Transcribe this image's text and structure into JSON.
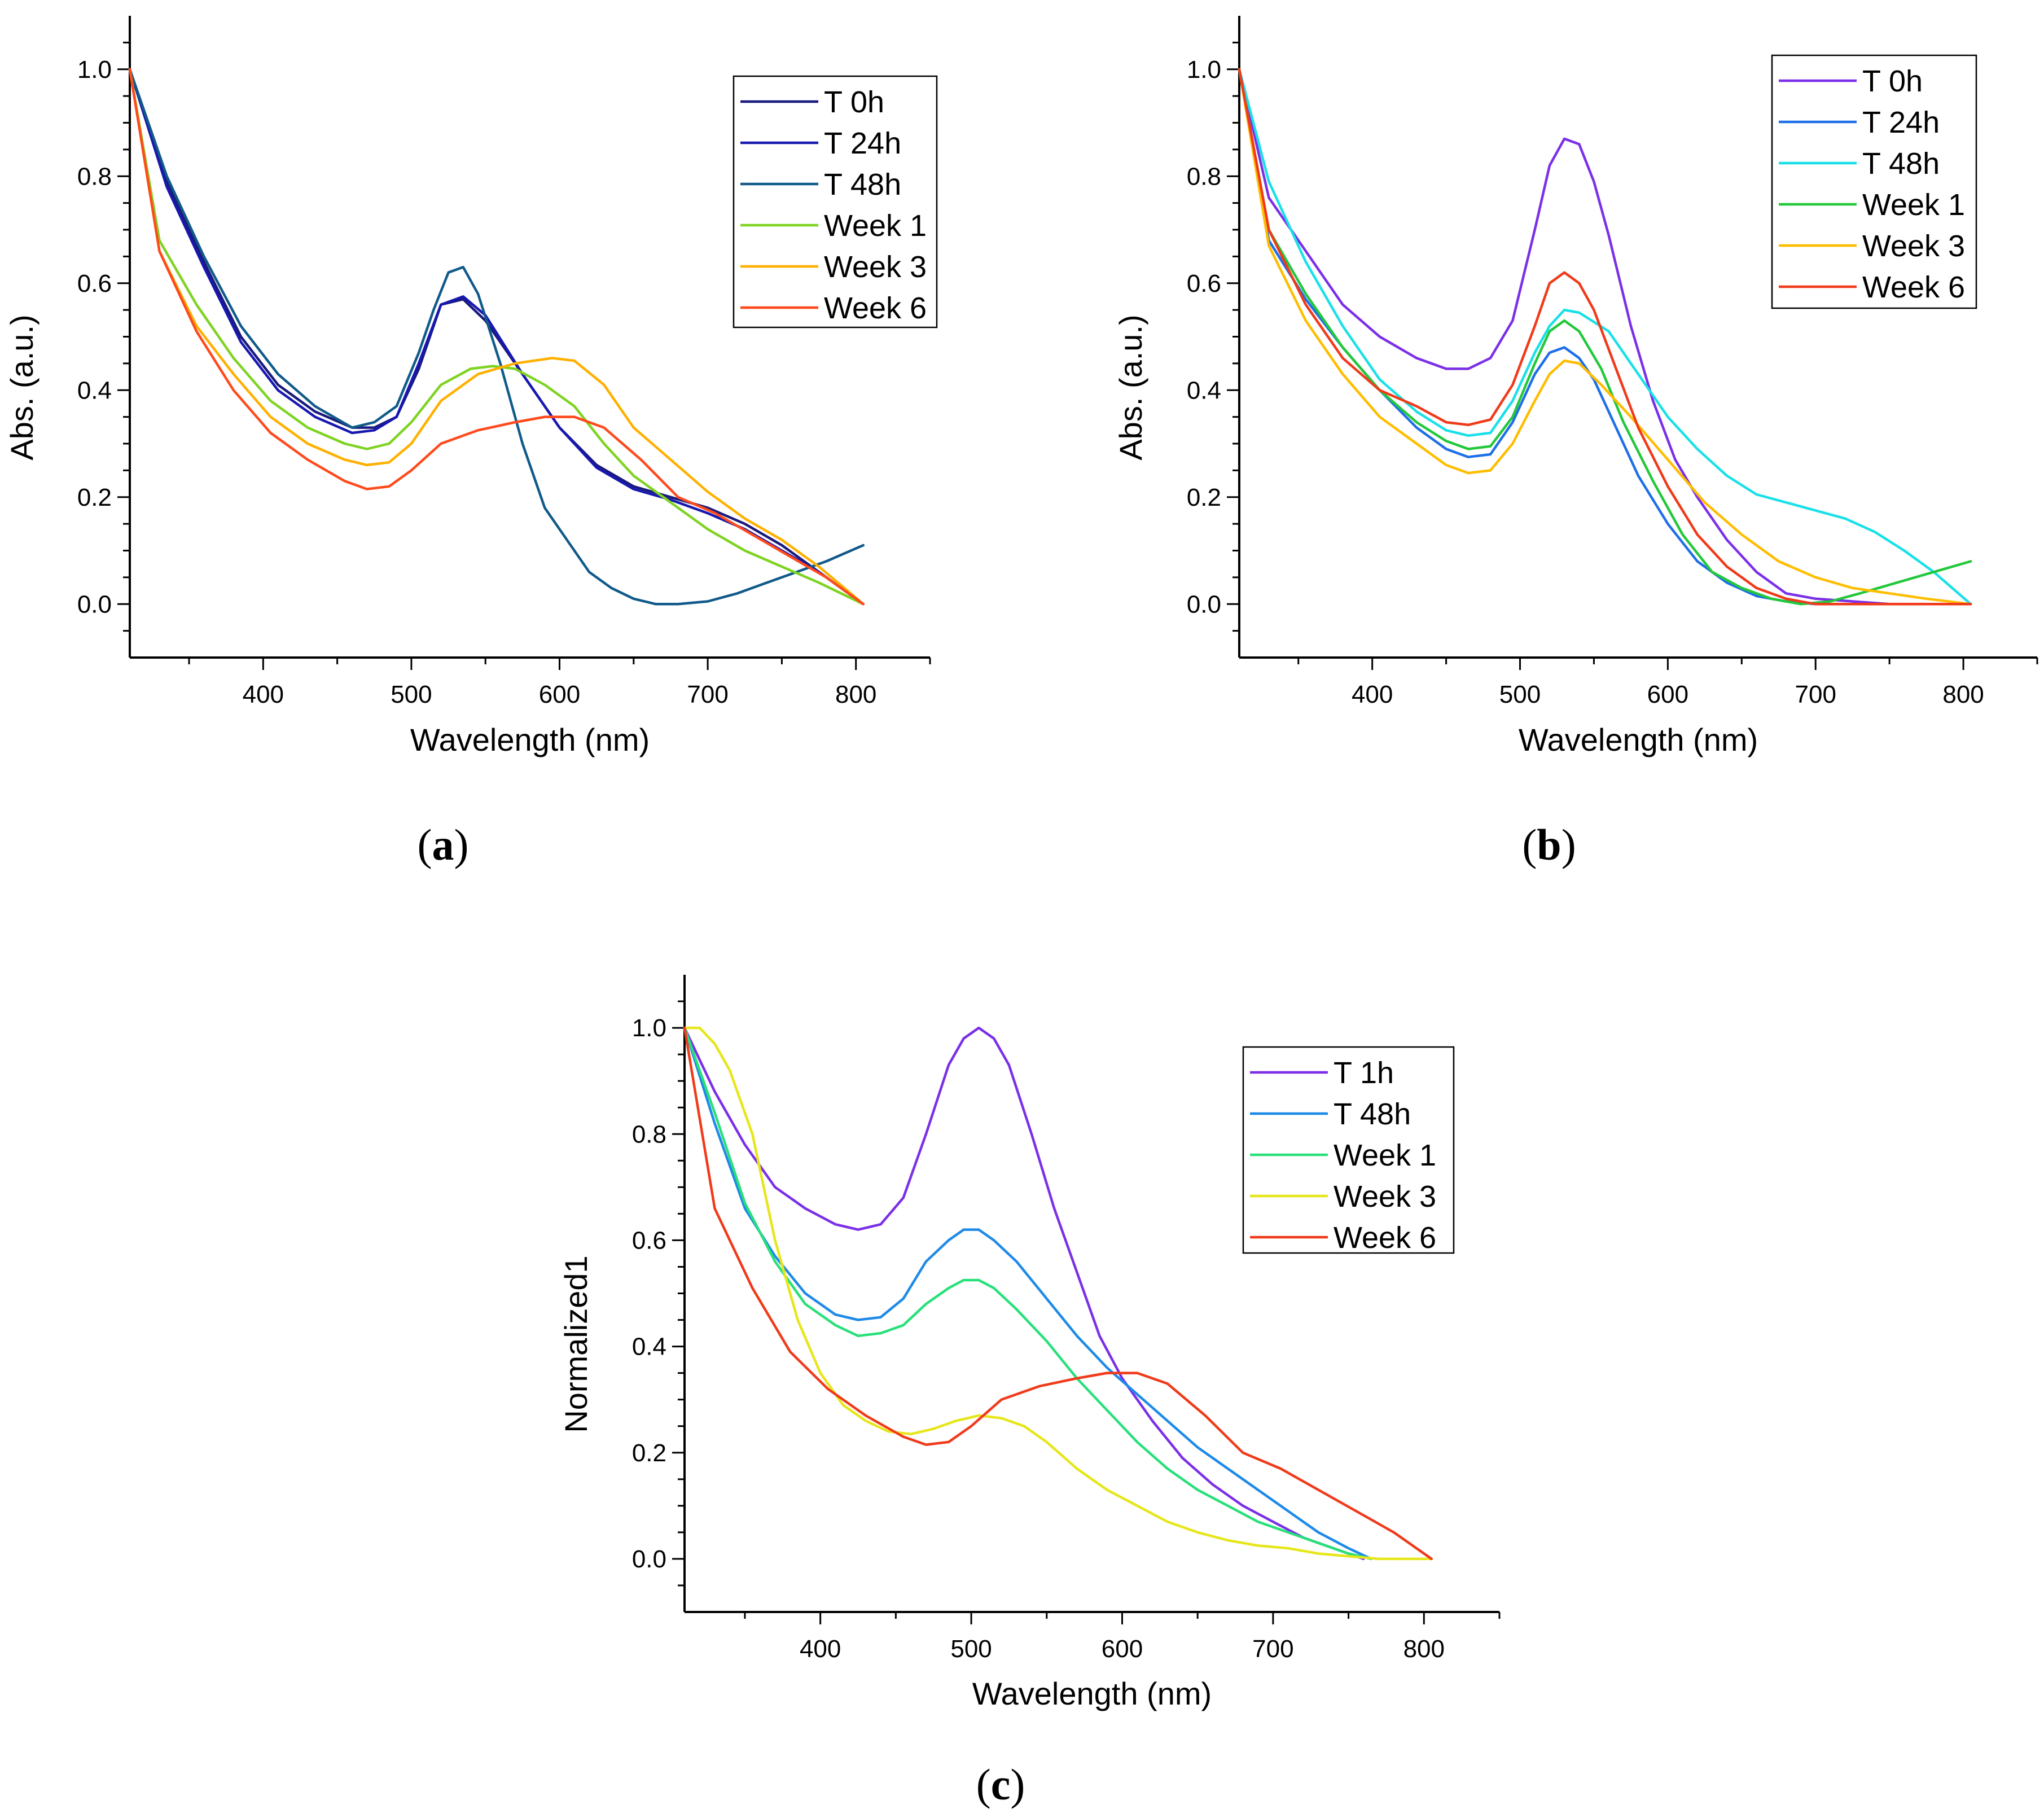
{
  "figure": {
    "panel_labels": [
      "a",
      "b",
      "c"
    ]
  },
  "chart_data": [
    {
      "type": "line",
      "panel": "a",
      "xlabel": "Wavelength (nm)",
      "ylabel": "Abs. (a.u.)",
      "xlim": [
        310,
        850
      ],
      "ylim": [
        -0.1,
        1.1
      ],
      "xticks": [
        400,
        500,
        600,
        700,
        800
      ],
      "yticks": [
        0.0,
        0.2,
        0.4,
        0.6,
        0.8,
        1.0
      ],
      "ytick_labels": [
        "0.0",
        "0.2",
        "0.4",
        "0.6",
        "0.8",
        "1.0"
      ],
      "legend_position": "top-right",
      "series": [
        {
          "name": "T 0h",
          "color": "#1a1a7e",
          "x": [
            310,
            335,
            360,
            385,
            410,
            435,
            460,
            475,
            490,
            505,
            520,
            535,
            550,
            575,
            600,
            625,
            650,
            675,
            700,
            725,
            750,
            775,
            805
          ],
          "y": [
            1.0,
            0.79,
            0.64,
            0.5,
            0.41,
            0.36,
            0.33,
            0.33,
            0.35,
            0.44,
            0.56,
            0.57,
            0.53,
            0.43,
            0.33,
            0.26,
            0.22,
            0.2,
            0.18,
            0.15,
            0.11,
            0.06,
            0.0
          ]
        },
        {
          "name": "T 24h",
          "color": "#1818b0",
          "x": [
            310,
            335,
            360,
            385,
            410,
            435,
            460,
            475,
            490,
            505,
            520,
            535,
            550,
            575,
            600,
            625,
            650,
            675,
            700,
            725,
            750,
            775,
            805
          ],
          "y": [
            1.0,
            0.78,
            0.63,
            0.49,
            0.4,
            0.35,
            0.32,
            0.325,
            0.35,
            0.45,
            0.56,
            0.575,
            0.54,
            0.43,
            0.33,
            0.255,
            0.215,
            0.195,
            0.17,
            0.14,
            0.1,
            0.06,
            0.0
          ]
        },
        {
          "name": "T 48h",
          "color": "#105a8a",
          "x": [
            310,
            335,
            360,
            385,
            410,
            435,
            460,
            475,
            490,
            505,
            515,
            525,
            535,
            545,
            560,
            575,
            590,
            605,
            620,
            635,
            650,
            665,
            680,
            700,
            720,
            740,
            760,
            780,
            805
          ],
          "y": [
            1.0,
            0.8,
            0.65,
            0.52,
            0.43,
            0.37,
            0.33,
            0.34,
            0.37,
            0.47,
            0.55,
            0.62,
            0.63,
            0.58,
            0.45,
            0.3,
            0.18,
            0.12,
            0.06,
            0.03,
            0.01,
            0.0,
            0.0,
            0.005,
            0.02,
            0.04,
            0.06,
            0.08,
            0.11
          ]
        },
        {
          "name": "Week 1",
          "color": "#7ed321",
          "x": [
            310,
            330,
            355,
            380,
            405,
            430,
            455,
            470,
            485,
            500,
            520,
            540,
            555,
            570,
            590,
            610,
            630,
            650,
            675,
            700,
            725,
            750,
            775,
            805
          ],
          "y": [
            1.0,
            0.68,
            0.56,
            0.46,
            0.38,
            0.33,
            0.3,
            0.29,
            0.3,
            0.34,
            0.41,
            0.44,
            0.445,
            0.44,
            0.41,
            0.37,
            0.3,
            0.24,
            0.19,
            0.14,
            0.1,
            0.07,
            0.04,
            0.0
          ]
        },
        {
          "name": "Week 3",
          "color": "#ffb000",
          "x": [
            310,
            330,
            355,
            380,
            405,
            430,
            455,
            470,
            485,
            500,
            520,
            545,
            570,
            595,
            610,
            630,
            650,
            675,
            700,
            725,
            750,
            775,
            805
          ],
          "y": [
            1.0,
            0.66,
            0.52,
            0.43,
            0.35,
            0.3,
            0.27,
            0.26,
            0.265,
            0.3,
            0.38,
            0.43,
            0.45,
            0.46,
            0.455,
            0.41,
            0.33,
            0.27,
            0.21,
            0.16,
            0.12,
            0.07,
            0.0
          ]
        },
        {
          "name": "Week 6",
          "color": "#ff4a1c",
          "x": [
            310,
            330,
            355,
            380,
            405,
            430,
            455,
            470,
            485,
            500,
            520,
            545,
            570,
            590,
            610,
            630,
            655,
            680,
            705,
            730,
            755,
            780,
            805
          ],
          "y": [
            1.0,
            0.66,
            0.51,
            0.4,
            0.32,
            0.27,
            0.23,
            0.215,
            0.22,
            0.25,
            0.3,
            0.325,
            0.34,
            0.35,
            0.35,
            0.33,
            0.27,
            0.2,
            0.17,
            0.13,
            0.09,
            0.05,
            0.0
          ]
        }
      ]
    },
    {
      "type": "line",
      "panel": "b",
      "xlabel": "Wavelength (nm)",
      "ylabel": "Abs. (a.u.)",
      "xlim": [
        310,
        850
      ],
      "ylim": [
        -0.1,
        1.1
      ],
      "xticks": [
        400,
        500,
        600,
        700,
        800
      ],
      "yticks": [
        0.0,
        0.2,
        0.4,
        0.6,
        0.8,
        1.0
      ],
      "ytick_labels": [
        "0.0",
        "0.2",
        "0.4",
        "0.6",
        "0.8",
        "1.0"
      ],
      "legend_position": "top-right",
      "series": [
        {
          "name": "T 0h",
          "color": "#7b2fe8",
          "x": [
            310,
            330,
            355,
            380,
            405,
            430,
            450,
            465,
            480,
            495,
            510,
            520,
            530,
            540,
            550,
            560,
            575,
            590,
            605,
            620,
            640,
            660,
            680,
            700,
            725,
            750,
            775,
            805
          ],
          "y": [
            1.0,
            0.76,
            0.66,
            0.56,
            0.5,
            0.46,
            0.44,
            0.44,
            0.46,
            0.53,
            0.7,
            0.82,
            0.87,
            0.86,
            0.79,
            0.69,
            0.52,
            0.38,
            0.27,
            0.2,
            0.12,
            0.06,
            0.02,
            0.01,
            0.005,
            0.0,
            0.0,
            0.0
          ]
        },
        {
          "name": "T 24h",
          "color": "#1e6fe8",
          "x": [
            310,
            330,
            355,
            380,
            405,
            430,
            450,
            465,
            480,
            495,
            510,
            520,
            530,
            540,
            550,
            565,
            580,
            600,
            620,
            640,
            660,
            680,
            700,
            725,
            750,
            775,
            805
          ],
          "y": [
            1.0,
            0.68,
            0.57,
            0.48,
            0.4,
            0.33,
            0.29,
            0.275,
            0.28,
            0.34,
            0.43,
            0.47,
            0.48,
            0.46,
            0.42,
            0.33,
            0.24,
            0.15,
            0.08,
            0.04,
            0.015,
            0.005,
            0.0,
            0.0,
            0.0,
            0.0,
            0.0
          ]
        },
        {
          "name": "T 48h",
          "color": "#19e0e8",
          "x": [
            310,
            330,
            355,
            380,
            405,
            430,
            450,
            465,
            480,
            495,
            510,
            520,
            530,
            540,
            560,
            580,
            600,
            620,
            640,
            660,
            680,
            700,
            720,
            740,
            760,
            780,
            805
          ],
          "y": [
            1.0,
            0.79,
            0.64,
            0.52,
            0.42,
            0.36,
            0.325,
            0.315,
            0.32,
            0.38,
            0.47,
            0.52,
            0.55,
            0.545,
            0.51,
            0.43,
            0.35,
            0.29,
            0.24,
            0.205,
            0.19,
            0.175,
            0.16,
            0.135,
            0.1,
            0.06,
            0.0
          ]
        },
        {
          "name": "Week 1",
          "color": "#22c83a",
          "x": [
            310,
            330,
            355,
            380,
            405,
            430,
            450,
            465,
            480,
            495,
            510,
            520,
            530,
            540,
            555,
            570,
            590,
            610,
            630,
            650,
            670,
            690,
            710,
            730,
            755,
            780,
            805
          ],
          "y": [
            1.0,
            0.7,
            0.58,
            0.48,
            0.4,
            0.34,
            0.305,
            0.29,
            0.295,
            0.35,
            0.45,
            0.51,
            0.53,
            0.51,
            0.44,
            0.34,
            0.23,
            0.13,
            0.06,
            0.03,
            0.01,
            0.0,
            0.005,
            0.02,
            0.04,
            0.06,
            0.08
          ]
        },
        {
          "name": "Week 3",
          "color": "#ffbd00",
          "x": [
            310,
            330,
            355,
            380,
            405,
            430,
            450,
            465,
            480,
            495,
            510,
            520,
            530,
            540,
            555,
            575,
            600,
            625,
            650,
            675,
            700,
            725,
            750,
            775,
            805
          ],
          "y": [
            1.0,
            0.67,
            0.53,
            0.43,
            0.35,
            0.3,
            0.26,
            0.245,
            0.25,
            0.3,
            0.38,
            0.43,
            0.455,
            0.45,
            0.41,
            0.35,
            0.27,
            0.19,
            0.13,
            0.08,
            0.05,
            0.03,
            0.02,
            0.01,
            0.0
          ]
        },
        {
          "name": "Week 6",
          "color": "#f03a1a",
          "x": [
            310,
            330,
            355,
            380,
            405,
            430,
            450,
            465,
            480,
            495,
            510,
            520,
            530,
            540,
            550,
            565,
            580,
            600,
            620,
            640,
            660,
            680,
            700,
            725,
            750,
            775,
            805
          ],
          "y": [
            1.0,
            0.7,
            0.56,
            0.46,
            0.4,
            0.37,
            0.34,
            0.335,
            0.345,
            0.41,
            0.52,
            0.6,
            0.62,
            0.6,
            0.55,
            0.44,
            0.33,
            0.22,
            0.13,
            0.07,
            0.03,
            0.01,
            0.0,
            0.0,
            0.0,
            0.0,
            0.0
          ]
        }
      ]
    },
    {
      "type": "line",
      "panel": "c",
      "xlabel": "Wavelength (nm)",
      "ylabel": "Normalized1",
      "xlim": [
        310,
        850
      ],
      "ylim": [
        -0.1,
        1.1
      ],
      "xticks": [
        400,
        500,
        600,
        700,
        800
      ],
      "yticks": [
        0.0,
        0.2,
        0.4,
        0.6,
        0.8,
        1.0
      ],
      "ytick_labels": [
        "0.0",
        "0.2",
        "0.4",
        "0.6",
        "0.8",
        "1.0"
      ],
      "legend_position": "top-right",
      "series": [
        {
          "name": "T 1h",
          "color": "#7b2fe8",
          "x": [
            310,
            330,
            350,
            370,
            390,
            410,
            425,
            440,
            455,
            470,
            485,
            495,
            505,
            515,
            525,
            540,
            555,
            570,
            585,
            600,
            620,
            640,
            660,
            680,
            700,
            720,
            740,
            760
          ],
          "y": [
            1.0,
            0.88,
            0.78,
            0.7,
            0.66,
            0.63,
            0.62,
            0.63,
            0.68,
            0.8,
            0.93,
            0.98,
            1.0,
            0.98,
            0.93,
            0.8,
            0.66,
            0.54,
            0.42,
            0.34,
            0.26,
            0.19,
            0.14,
            0.1,
            0.07,
            0.04,
            0.02,
            0.0
          ]
        },
        {
          "name": "T 48h",
          "color": "#1e8ae8",
          "x": [
            310,
            330,
            350,
            370,
            390,
            410,
            425,
            440,
            455,
            470,
            485,
            495,
            505,
            515,
            530,
            550,
            570,
            590,
            610,
            630,
            650,
            670,
            690,
            710,
            730,
            750,
            765
          ],
          "y": [
            1.0,
            0.82,
            0.66,
            0.57,
            0.5,
            0.46,
            0.45,
            0.455,
            0.49,
            0.56,
            0.6,
            0.62,
            0.62,
            0.6,
            0.56,
            0.49,
            0.42,
            0.36,
            0.31,
            0.26,
            0.21,
            0.17,
            0.13,
            0.09,
            0.05,
            0.02,
            0.0
          ]
        },
        {
          "name": "Week 1",
          "color": "#28e07a",
          "x": [
            310,
            330,
            350,
            370,
            390,
            410,
            425,
            440,
            455,
            470,
            485,
            495,
            505,
            515,
            530,
            550,
            570,
            590,
            610,
            630,
            650,
            670,
            690,
            710,
            730,
            750,
            765
          ],
          "y": [
            1.0,
            0.84,
            0.67,
            0.56,
            0.48,
            0.44,
            0.42,
            0.425,
            0.44,
            0.48,
            0.51,
            0.525,
            0.525,
            0.51,
            0.47,
            0.41,
            0.34,
            0.28,
            0.22,
            0.17,
            0.13,
            0.1,
            0.07,
            0.05,
            0.03,
            0.01,
            0.0
          ]
        },
        {
          "name": "Week 3",
          "color": "#e6e61a",
          "x": [
            310,
            320,
            330,
            340,
            355,
            370,
            385,
            400,
            415,
            430,
            445,
            460,
            475,
            490,
            505,
            520,
            535,
            550,
            570,
            590,
            610,
            630,
            650,
            670,
            690,
            710,
            730,
            750,
            770,
            805
          ],
          "y": [
            1.0,
            1.0,
            0.97,
            0.92,
            0.8,
            0.6,
            0.45,
            0.35,
            0.29,
            0.26,
            0.24,
            0.235,
            0.245,
            0.26,
            0.27,
            0.265,
            0.25,
            0.22,
            0.17,
            0.13,
            0.1,
            0.07,
            0.05,
            0.035,
            0.025,
            0.02,
            0.01,
            0.005,
            0.0,
            0.0
          ]
        },
        {
          "name": "Week 6",
          "color": "#f03a1a",
          "x": [
            310,
            330,
            355,
            380,
            405,
            430,
            455,
            470,
            485,
            500,
            520,
            545,
            570,
            590,
            610,
            630,
            655,
            680,
            705,
            730,
            755,
            780,
            805
          ],
          "y": [
            1.0,
            0.66,
            0.51,
            0.39,
            0.32,
            0.27,
            0.23,
            0.215,
            0.22,
            0.25,
            0.3,
            0.325,
            0.34,
            0.35,
            0.35,
            0.33,
            0.27,
            0.2,
            0.17,
            0.13,
            0.09,
            0.05,
            0.0
          ]
        }
      ]
    }
  ]
}
